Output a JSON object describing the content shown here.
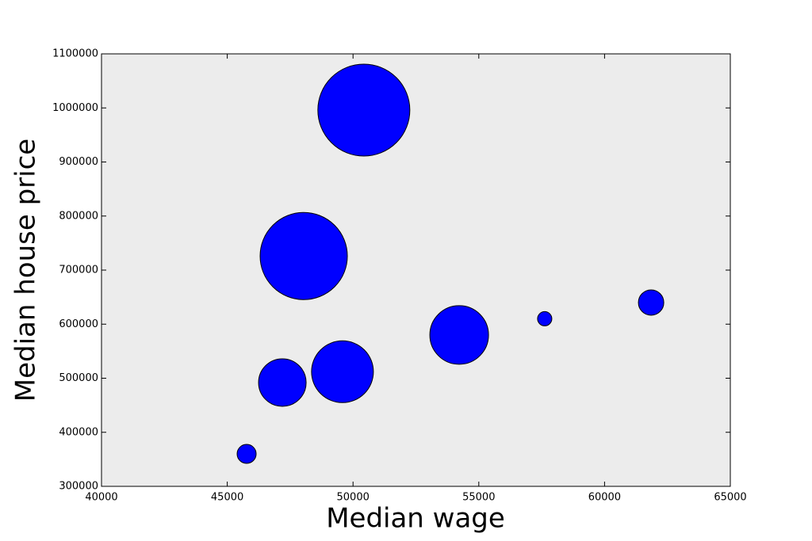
{
  "chart_data": {
    "type": "bubble",
    "x_label": "Median wage",
    "y_label": "Median house price",
    "x": [
      45770,
      47190,
      49580,
      48040,
      50430,
      54220,
      57620,
      61850
    ],
    "values": [
      360000,
      492000,
      512000,
      726000,
      996000,
      580000,
      610000,
      640000
    ],
    "sizes": [
      144,
      900,
      1521,
      3025,
      3364,
      1369,
      81,
      256
    ],
    "color": "#0000ff",
    "xlim": [
      40000,
      65000
    ],
    "xticks": [
      40000,
      45000,
      50000,
      55000,
      60000,
      65000
    ],
    "ylim": [
      300000,
      1100000
    ],
    "yticks": [
      300000,
      400000,
      500000,
      600000,
      700000,
      800000,
      900000,
      1000000,
      1100000
    ],
    "background": "#ececec"
  }
}
